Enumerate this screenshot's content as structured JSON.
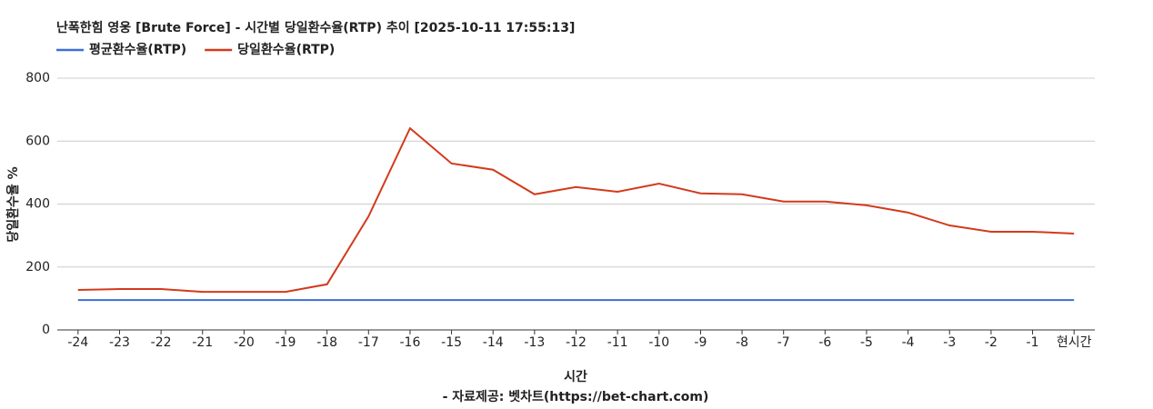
{
  "chart_data": {
    "type": "line",
    "title": "난폭한힘 영웅 [Brute Force] - 시간별 당일환수율(RTP) 추이 [2025-10-11 17:55:13]",
    "x_label": "시간",
    "y_label": "당일환수율 %",
    "source": "- 자료제공: 벳차트(https://bet-chart.com)",
    "categories": [
      "-24",
      "-23",
      "-22",
      "-21",
      "-20",
      "-19",
      "-18",
      "-17",
      "-16",
      "-15",
      "-14",
      "-13",
      "-12",
      "-11",
      "-10",
      "-9",
      "-8",
      "-7",
      "-6",
      "-5",
      "-4",
      "-3",
      "-2",
      "-1",
      "현시간"
    ],
    "series": [
      {
        "name": "평균환수율(RTP)",
        "color": "#3c6fd6",
        "values": [
          95,
          95,
          95,
          95,
          95,
          95,
          95,
          95,
          95,
          95,
          95,
          95,
          95,
          95,
          95,
          95,
          95,
          95,
          95,
          95,
          95,
          95,
          95,
          95,
          95
        ]
      },
      {
        "name": "당일환수율(RTP)",
        "color": "#d33a1c",
        "values": [
          127,
          130,
          130,
          121,
          121,
          121,
          145,
          361,
          641,
          529,
          509,
          431,
          454,
          439,
          465,
          434,
          431,
          408,
          408,
          396,
          373,
          332,
          312,
          312,
          306
        ]
      }
    ],
    "ylim": [
      0,
      800
    ],
    "yticks": [
      0,
      200,
      400,
      600,
      800
    ],
    "grid": true,
    "legend": "top-left"
  }
}
